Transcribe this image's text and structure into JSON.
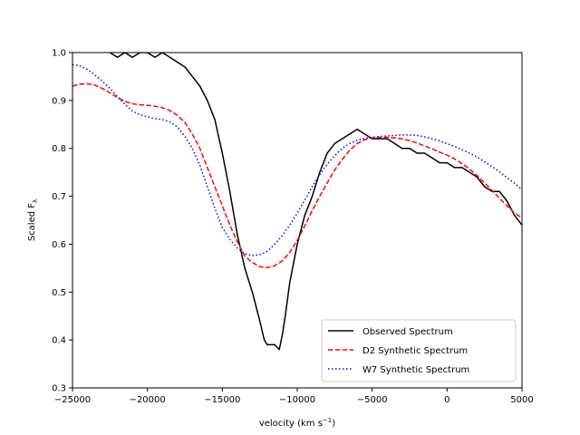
{
  "chart_data": {
    "type": "line",
    "xlabel": "velocity (km s",
    "xlabel_sup": "−1",
    "xlabel_close": ")",
    "ylabel": "Scaled F",
    "ylabel_sub": "λ",
    "xlim": [
      -25000,
      5000
    ],
    "ylim": [
      0.3,
      1.0
    ],
    "xticks": [
      -25000,
      -20000,
      -15000,
      -10000,
      -5000,
      0,
      5000
    ],
    "xtick_labels": [
      "−25000",
      "−20000",
      "−15000",
      "−10000",
      "−5000",
      "0",
      "5000"
    ],
    "yticks": [
      0.3,
      0.4,
      0.5,
      0.6,
      0.7,
      0.8,
      0.9,
      1.0
    ],
    "ytick_labels": [
      "0.3",
      "0.4",
      "0.5",
      "0.6",
      "0.7",
      "0.8",
      "0.9",
      "1.0"
    ],
    "grid": false,
    "legend_position": "lower-right",
    "series": [
      {
        "name": "Observed Spectrum",
        "color": "#000000",
        "style": "solid",
        "x": [
          -22500,
          -22000,
          -21500,
          -21000,
          -20500,
          -20000,
          -19500,
          -19000,
          -18500,
          -18000,
          -17500,
          -17000,
          -16500,
          -16000,
          -15500,
          -15000,
          -14500,
          -14000,
          -13500,
          -13000,
          -12500,
          -12200,
          -12000,
          -11800,
          -11500,
          -11200,
          -11000,
          -10800,
          -10500,
          -10000,
          -9500,
          -9000,
          -8500,
          -8000,
          -7500,
          -7000,
          -6500,
          -6000,
          -5500,
          -5000,
          -4500,
          -4000,
          -3500,
          -3000,
          -2500,
          -2000,
          -1500,
          -1000,
          -500,
          0,
          500,
          1000,
          1500,
          2000,
          2500,
          3000,
          3500,
          4000,
          4500,
          5000
        ],
        "y": [
          1.0,
          0.99,
          1.0,
          0.99,
          1.0,
          1.0,
          0.99,
          1.0,
          0.99,
          0.98,
          0.97,
          0.95,
          0.93,
          0.9,
          0.86,
          0.79,
          0.71,
          0.62,
          0.55,
          0.5,
          0.44,
          0.4,
          0.39,
          0.39,
          0.39,
          0.38,
          0.41,
          0.45,
          0.52,
          0.6,
          0.66,
          0.7,
          0.75,
          0.79,
          0.81,
          0.82,
          0.83,
          0.84,
          0.83,
          0.82,
          0.82,
          0.82,
          0.81,
          0.8,
          0.8,
          0.79,
          0.79,
          0.78,
          0.77,
          0.77,
          0.76,
          0.76,
          0.75,
          0.74,
          0.72,
          0.71,
          0.71,
          0.69,
          0.66,
          0.64
        ]
      },
      {
        "name": "D2 Synthetic Spectrum",
        "color": "#ff0000",
        "style": "dashed",
        "x": [
          -25000,
          -24500,
          -24000,
          -23500,
          -23000,
          -22500,
          -22000,
          -21500,
          -21000,
          -20500,
          -20000,
          -19500,
          -19000,
          -18500,
          -18000,
          -17500,
          -17000,
          -16500,
          -16000,
          -15500,
          -15000,
          -14500,
          -14000,
          -13500,
          -13000,
          -12500,
          -12000,
          -11500,
          -11000,
          -10500,
          -10000,
          -9500,
          -9000,
          -8500,
          -8000,
          -7500,
          -7000,
          -6500,
          -6000,
          -5500,
          -5000,
          -4500,
          -4000,
          -3500,
          -3000,
          -2500,
          -2000,
          -1500,
          -1000,
          -500,
          0,
          500,
          1000,
          1500,
          2000,
          2500,
          3000,
          3500,
          4000,
          4500,
          5000
        ],
        "y": [
          0.93,
          0.934,
          0.935,
          0.932,
          0.925,
          0.916,
          0.906,
          0.898,
          0.893,
          0.891,
          0.89,
          0.888,
          0.885,
          0.879,
          0.869,
          0.854,
          0.83,
          0.8,
          0.76,
          0.72,
          0.68,
          0.64,
          0.605,
          0.575,
          0.562,
          0.553,
          0.551,
          0.555,
          0.565,
          0.583,
          0.608,
          0.638,
          0.67,
          0.7,
          0.728,
          0.755,
          0.777,
          0.796,
          0.81,
          0.818,
          0.822,
          0.823,
          0.823,
          0.822,
          0.82,
          0.816,
          0.811,
          0.805,
          0.799,
          0.792,
          0.786,
          0.778,
          0.768,
          0.757,
          0.743,
          0.728,
          0.712,
          0.696,
          0.68,
          0.665,
          0.655
        ]
      },
      {
        "name": "W7 Synthetic Spectrum",
        "color": "#0000ff",
        "style": "dotted",
        "x": [
          -25000,
          -24500,
          -24000,
          -23500,
          -23000,
          -22500,
          -22000,
          -21500,
          -21000,
          -20500,
          -20000,
          -19500,
          -19000,
          -18500,
          -18000,
          -17500,
          -17000,
          -16500,
          -16000,
          -15500,
          -15000,
          -14500,
          -14000,
          -13500,
          -13000,
          -12500,
          -12000,
          -11500,
          -11000,
          -10500,
          -10000,
          -9500,
          -9000,
          -8500,
          -8000,
          -7500,
          -7000,
          -6500,
          -6000,
          -5500,
          -5000,
          -4500,
          -4000,
          -3500,
          -3000,
          -2500,
          -2000,
          -1500,
          -1000,
          -500,
          0,
          500,
          1000,
          1500,
          2000,
          2500,
          3000,
          3500,
          4000,
          4500,
          5000
        ],
        "y": [
          0.975,
          0.972,
          0.965,
          0.953,
          0.94,
          0.925,
          0.908,
          0.892,
          0.878,
          0.87,
          0.866,
          0.862,
          0.86,
          0.855,
          0.845,
          0.825,
          0.8,
          0.765,
          0.72,
          0.675,
          0.635,
          0.61,
          0.592,
          0.58,
          0.576,
          0.578,
          0.585,
          0.6,
          0.618,
          0.64,
          0.665,
          0.692,
          0.72,
          0.745,
          0.767,
          0.785,
          0.8,
          0.81,
          0.817,
          0.821,
          0.823,
          0.825,
          0.826,
          0.827,
          0.828,
          0.828,
          0.827,
          0.824,
          0.82,
          0.816,
          0.81,
          0.804,
          0.797,
          0.79,
          0.782,
          0.772,
          0.762,
          0.751,
          0.739,
          0.727,
          0.714
        ]
      }
    ]
  }
}
